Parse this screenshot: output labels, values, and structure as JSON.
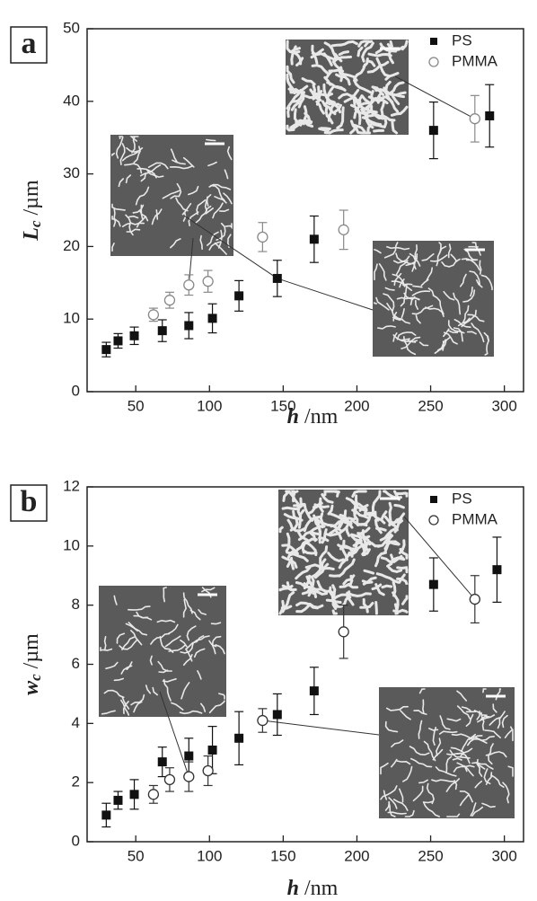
{
  "chart_data": [
    {
      "type": "scatter",
      "label": "a",
      "xlabel": {
        "symbol": "h",
        "unit": "/nm"
      },
      "ylabel": {
        "symbol": "L",
        "subscript": "c",
        "unit": "/µm"
      },
      "xlim": [
        17,
        313
      ],
      "xticks": [
        50,
        100,
        150,
        200,
        250,
        300
      ],
      "ylim": [
        0,
        50
      ],
      "yticks": [
        0,
        10,
        20,
        30,
        40,
        50
      ],
      "legend": "upper right",
      "series": [
        {
          "name": "PS",
          "marker": "square",
          "color": "#111111",
          "x": [
            30,
            38,
            49,
            68,
            86,
            102,
            120,
            146,
            171,
            252,
            290
          ],
          "values": [
            5.8,
            7.0,
            7.7,
            8.4,
            9.1,
            10.1,
            13.2,
            15.6,
            21.0,
            36.0,
            38.0
          ],
          "errors": [
            1.0,
            1.0,
            1.2,
            1.5,
            1.8,
            2.0,
            2.1,
            2.5,
            3.2,
            3.9,
            4.3
          ]
        },
        {
          "name": "PMMA",
          "marker": "circle",
          "color": "#888888",
          "x": [
            62,
            73,
            86,
            99,
            136,
            191,
            280
          ],
          "values": [
            10.6,
            12.6,
            14.7,
            15.2,
            21.3,
            22.3,
            37.6
          ],
          "errors": [
            0.9,
            1.1,
            1.4,
            1.5,
            2.0,
            2.7,
            3.2
          ]
        }
      ]
    },
    {
      "type": "scatter",
      "label": "b",
      "xlabel": {
        "symbol": "h",
        "unit": "/nm"
      },
      "ylabel": {
        "symbol": "w",
        "subscript": "c",
        "unit": "/µm"
      },
      "xlim": [
        17,
        313
      ],
      "xticks": [
        50,
        100,
        150,
        200,
        250,
        300
      ],
      "ylim": [
        0,
        12
      ],
      "yticks": [
        0,
        2,
        4,
        6,
        8,
        10,
        12
      ],
      "legend": "upper right",
      "series": [
        {
          "name": "PS",
          "marker": "square",
          "color": "#111111",
          "x": [
            30,
            38,
            49,
            68,
            86,
            102,
            120,
            146,
            171,
            252,
            295
          ],
          "values": [
            0.9,
            1.4,
            1.6,
            2.7,
            2.9,
            3.1,
            3.5,
            4.3,
            5.1,
            8.7,
            9.2
          ],
          "errors": [
            0.4,
            0.3,
            0.5,
            0.5,
            0.6,
            0.8,
            0.9,
            0.7,
            0.8,
            0.9,
            1.1
          ]
        },
        {
          "name": "PMMA",
          "marker": "circle",
          "color": "#333333",
          "x": [
            62,
            73,
            86,
            99,
            136,
            191,
            280
          ],
          "values": [
            1.6,
            2.1,
            2.2,
            2.4,
            4.1,
            7.1,
            8.2
          ],
          "errors": [
            0.3,
            0.4,
            0.5,
            0.5,
            0.4,
            0.9,
            0.8
          ]
        }
      ]
    }
  ]
}
